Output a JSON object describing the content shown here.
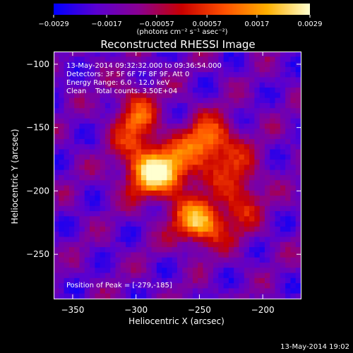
{
  "chart_data": {
    "type": "heatmap",
    "title": "Reconstructed RHESSI Image",
    "xlabel": "Heliocentric X (arcsec)",
    "ylabel": "Heliocentric Y (arcsec)",
    "xlim": [
      -365,
      -170
    ],
    "ylim": [
      -285,
      -90
    ],
    "x_ticks": [
      -350,
      -300,
      -250,
      -200
    ],
    "y_ticks": [
      -100,
      -150,
      -200,
      -250
    ],
    "x_tick_labels": [
      "−350",
      "−300",
      "−250",
      "−200"
    ],
    "y_tick_labels": [
      "−100",
      "−150",
      "−200",
      "−250"
    ],
    "colorbar": {
      "range": [
        -0.0029,
        0.0029
      ],
      "tick_values": [
        -0.0029,
        -0.0017,
        -0.00057,
        0.00057,
        0.0017,
        0.0029
      ],
      "tick_labels": [
        "−0.0029",
        "−0.0017",
        "−0.00057",
        "0.00057",
        "0.0017",
        "0.0029"
      ],
      "units": "(photons cm⁻² s⁻¹ asec⁻²)",
      "colormap": [
        "#0000ff",
        "#5a00d0",
        "#8a0090",
        "#c80000",
        "#ff5000",
        "#ffb000",
        "#ffffd0"
      ]
    },
    "annotations": {
      "time_range": "13-May-2014 09:32:32.000 to 09:36:54.000",
      "detectors": "Detectors: 3F 5F 6F 7F 8F 9F, Att 0",
      "energy_range": "Energy Range: 6.0 - 12.0 keV",
      "clean_counts": "Clean    Total counts: 3.50E+04",
      "peak_position": "Position of Peak = [-279,-185]"
    },
    "peak": {
      "x": -279,
      "y": -185
    },
    "sources": [
      {
        "x": -282,
        "y": -185,
        "amp": 1.0,
        "sx": 18,
        "sy": 14
      },
      {
        "x": -250,
        "y": -225,
        "amp": 0.85,
        "sx": 14,
        "sy": 12
      },
      {
        "x": -243,
        "y": -162,
        "amp": 0.7,
        "sx": 14,
        "sy": 14
      },
      {
        "x": -300,
        "y": -145,
        "amp": 0.55,
        "sx": 12,
        "sy": 18
      },
      {
        "x": -218,
        "y": -200,
        "amp": 0.45,
        "sx": 12,
        "sy": 22
      }
    ]
  },
  "footer": {
    "date": "13-May-2014 19:02"
  }
}
